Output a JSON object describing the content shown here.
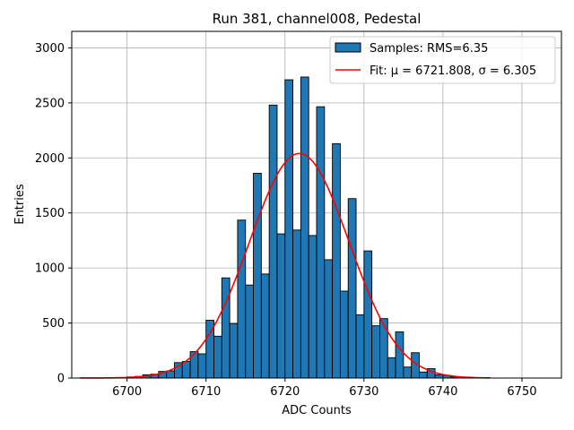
{
  "chart_data": {
    "type": "bar",
    "title": "Run 381, channel008, Pedestal",
    "xlabel": "ADC Counts",
    "ylabel": "Entries",
    "xlim": [
      6693,
      6755
    ],
    "ylim": [
      0,
      3150
    ],
    "xticks": [
      6700,
      6710,
      6720,
      6730,
      6740,
      6750
    ],
    "yticks": [
      0,
      500,
      1000,
      1500,
      2000,
      2500,
      3000
    ],
    "grid": true,
    "legend_position": "top-right",
    "bin_width": 1,
    "colors": {
      "bars": "#1f77b4",
      "bar_edge": "#000000",
      "fit": "#ff0000",
      "grid": "#b0b0b0"
    },
    "series": [
      {
        "name": "Samples: RMS=6.35",
        "kind": "histogram",
        "bin_starts": [
          6700,
          6701,
          6702,
          6703,
          6704,
          6705,
          6706,
          6707,
          6708,
          6709,
          6710,
          6711,
          6712,
          6713,
          6714,
          6715,
          6716,
          6717,
          6718,
          6719,
          6720,
          6721,
          6722,
          6723,
          6724,
          6725,
          6726,
          6727,
          6728,
          6729,
          6730,
          6731,
          6732,
          6733,
          6734,
          6735,
          6736,
          6737,
          6738,
          6739,
          6740,
          6741,
          6742,
          6743
        ],
        "values": [
          10,
          15,
          30,
          35,
          60,
          65,
          140,
          150,
          240,
          220,
          525,
          380,
          910,
          495,
          1435,
          845,
          1860,
          945,
          2480,
          1310,
          2710,
          1345,
          2735,
          1295,
          2465,
          1075,
          2130,
          790,
          1630,
          575,
          1155,
          475,
          540,
          185,
          420,
          100,
          230,
          55,
          85,
          30,
          25,
          10,
          5,
          5
        ]
      },
      {
        "name": "Fit: μ = 6721.808, σ = 6.305",
        "kind": "gaussian",
        "mu": 6721.808,
        "sigma": 6.305,
        "amplitude": 2040,
        "x_range": [
          6694,
          6746
        ]
      }
    ]
  }
}
